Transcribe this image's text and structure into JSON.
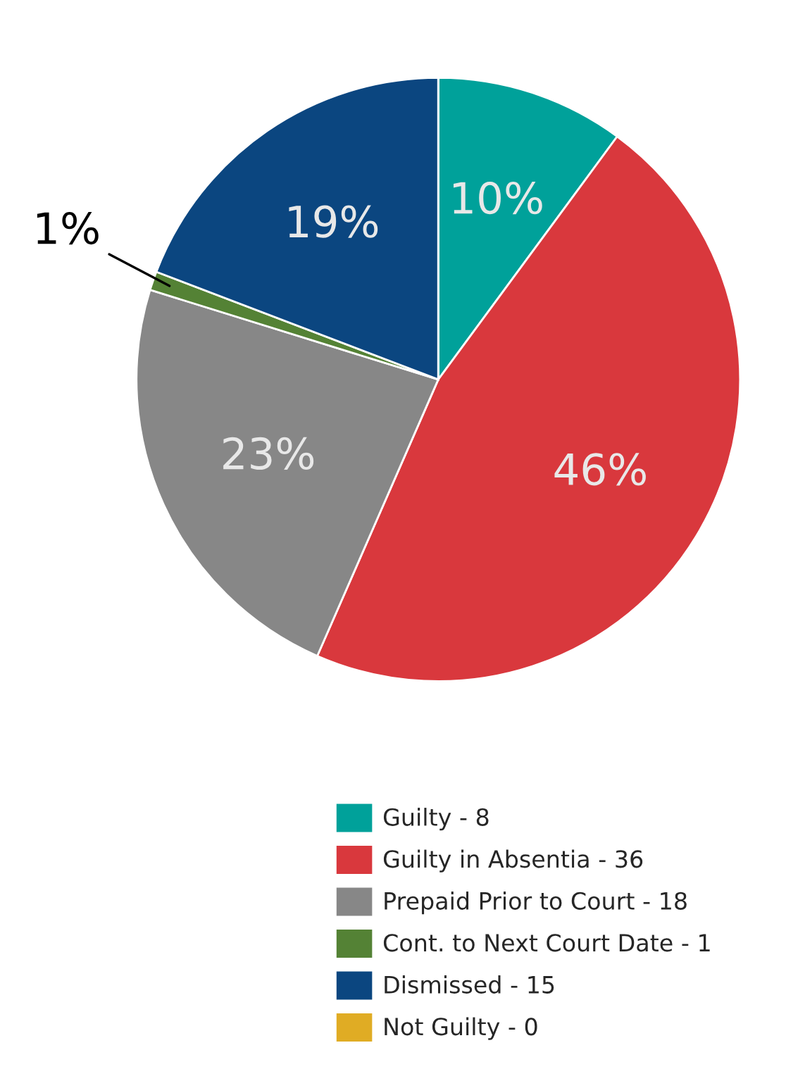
{
  "chart_data": {
    "type": "pie",
    "categories": [
      "Guilty - 8",
      "Guilty in Absentia - 36",
      "Prepaid Prior to Court - 18",
      "Cont. to Next Court Date - 1",
      "Dismissed - 15",
      "Not Guilty - 0"
    ],
    "values": [
      10,
      46,
      23,
      1,
      19,
      0
    ],
    "value_labels": [
      "10%",
      "46%",
      "23%",
      "1%",
      "19%",
      null
    ],
    "colors": [
      "#00a19a",
      "#d9383d",
      "#878787",
      "#548235",
      "#0b4680",
      "#e0ac24"
    ],
    "legend": "bottom"
  }
}
